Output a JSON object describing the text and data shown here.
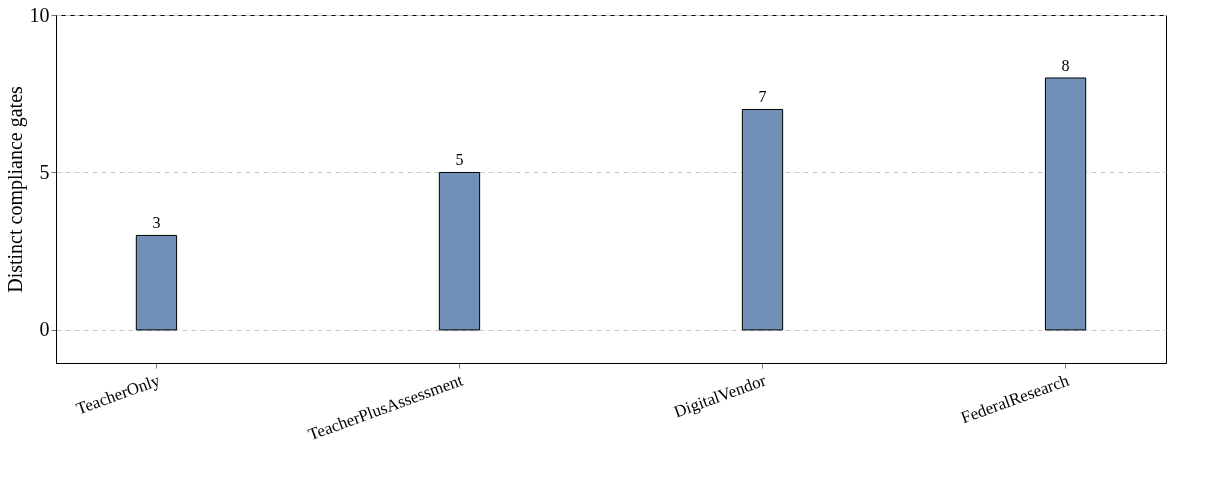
{
  "chart_data": {
    "type": "bar",
    "ylabel": "Distinct compliance gates",
    "categories": [
      "TeacherOnly",
      "TeacherPlusAssessment",
      "DigitalVendor",
      "FederalResearch"
    ],
    "series": [
      {
        "color": "#7190b8",
        "values": [
          3,
          5,
          7,
          8
        ]
      }
    ],
    "ylim": [
      -1.05,
      10
    ],
    "yticks": [
      0,
      5,
      10
    ],
    "grid": "y",
    "data_labels": true,
    "legend": false
  }
}
